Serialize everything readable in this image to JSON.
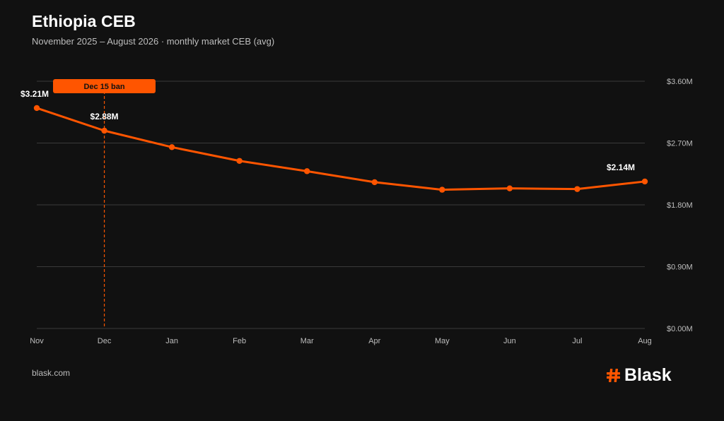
{
  "header": {
    "title": "Ethiopia CEB",
    "subtitle": "November 2025 – August 2026 · monthly market CEB (avg)"
  },
  "footer": {
    "url": "blask.com",
    "brand": "Blask",
    "brand_icon": "hash-icon"
  },
  "colors": {
    "background": "#111111",
    "accent": "#ff5500",
    "grid": "#3a3a3a",
    "text_muted": "#bdbdbd"
  },
  "chart_data": {
    "type": "line",
    "title": "Ethiopia CEB",
    "subtitle": "November 2025 – August 2026 · monthly market CEB (avg)",
    "categories": [
      "Nov",
      "Dec",
      "Jan",
      "Feb",
      "Mar",
      "Apr",
      "May",
      "Jun",
      "Jul",
      "Aug"
    ],
    "series": [
      {
        "values": [
          3.21,
          2.88,
          2.64,
          2.44,
          2.29,
          2.13,
          2.02,
          2.04,
          2.03,
          2.14
        ]
      }
    ],
    "value_unit": "$M",
    "ylim": [
      0,
      3.6
    ],
    "yticks": [
      0,
      0.9,
      1.8,
      2.7,
      3.6
    ],
    "ytick_labels": [
      "$0.00M",
      "$0.90M",
      "$1.80M",
      "$2.70M",
      "$3.60M"
    ],
    "y_axis_side": "right",
    "grid": true,
    "legend": "none",
    "data_labels": [
      {
        "index": 0,
        "text": "$3.21M"
      },
      {
        "index": 1,
        "text": "$2.88M"
      },
      {
        "index": 9,
        "text": "$2.14M"
      }
    ],
    "annotations": [
      {
        "category": "Dec",
        "label": "Dec 15 ban",
        "style": "dashed-vertical"
      }
    ]
  }
}
